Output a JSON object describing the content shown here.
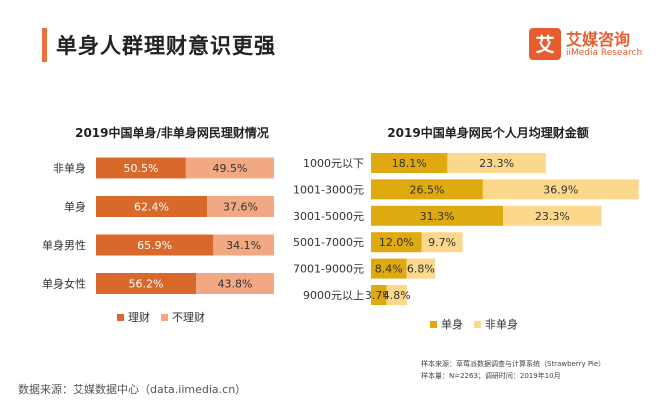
{
  "header": {
    "title": "单身人群理财意识更强",
    "accent_color": "#e8743b"
  },
  "logo": {
    "name": "艾媒咨询",
    "en": "iiMedia Research",
    "mark": "艾",
    "color": "#e85d2f"
  },
  "chart_data": [
    {
      "type": "bar",
      "orientation": "horizontal",
      "stacked": true,
      "title": "2019中国单身/非单身网民理财情况",
      "categories": [
        "非单身",
        "单身",
        "单身男性",
        "单身女性"
      ],
      "series": [
        {
          "name": "理财",
          "values": [
            50.5,
            62.4,
            65.9,
            56.2
          ],
          "color": "#d9692b",
          "text_color": "#ffffff"
        },
        {
          "name": "不理财",
          "values": [
            49.5,
            37.6,
            34.1,
            43.8
          ],
          "color": "#f2a882",
          "text_color": "#333333"
        }
      ],
      "value_suffix": "%",
      "legend": "bottom"
    },
    {
      "type": "bar",
      "orientation": "horizontal",
      "stacked": true,
      "title": "2019中国单身网民个人月均理财金额",
      "categories": [
        "1000元以下",
        "1001-3000元",
        "3001-5000元",
        "5001-7000元",
        "7001-9000元",
        "9000元以上"
      ],
      "series": [
        {
          "name": "单身",
          "values": [
            18.1,
            26.5,
            31.3,
            12.0,
            8.4,
            3.7
          ],
          "color": "#dfa910",
          "text_color": "#333333"
        },
        {
          "name": "非单身",
          "values": [
            23.3,
            36.9,
            23.3,
            9.7,
            6.8,
            4.8
          ],
          "color": "#fbd88c",
          "text_color": "#333333"
        }
      ],
      "value_suffix": "%",
      "legend": "bottom"
    }
  ],
  "notes": {
    "line1": "样本来源：草莓派数据调查与计算系统（Strawberry Pie）",
    "line2": "样本量：N=2263；调研时间：2019年10月"
  },
  "footer": {
    "source": "数据来源：艾媒数据中心（data.iimedia.cn）"
  }
}
